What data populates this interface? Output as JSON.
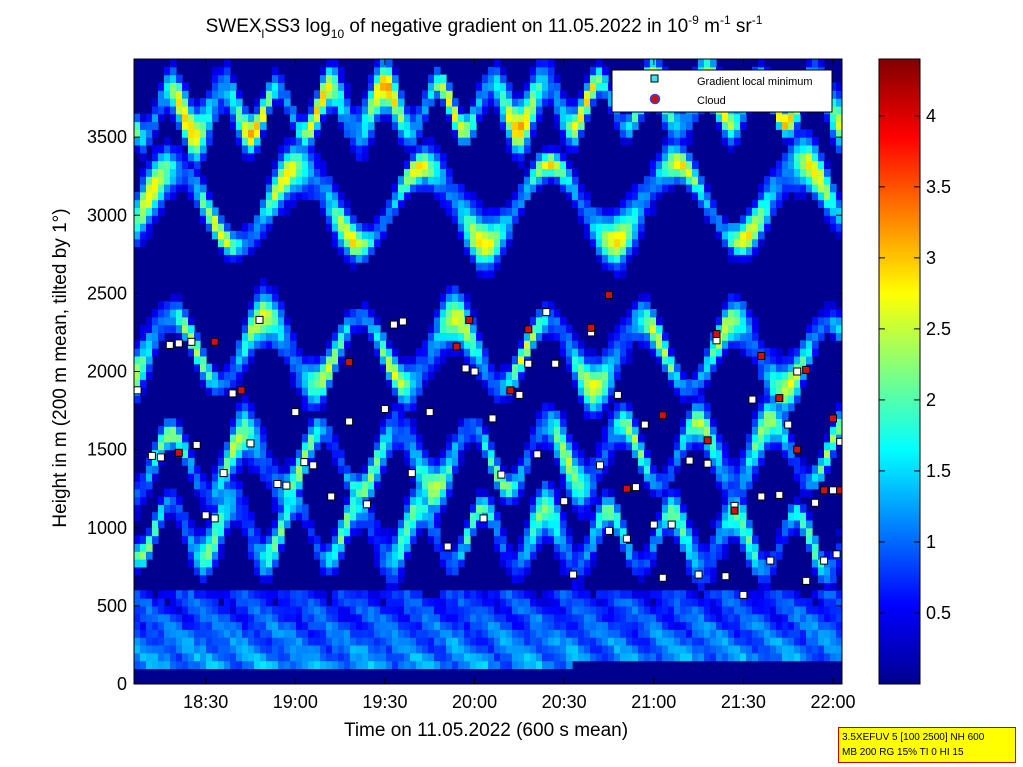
{
  "chart_data": {
    "type": "heatmap",
    "title": {
      "prefix": "SWEX",
      "sub1": "l",
      "mid": "SS3 log",
      "sub2": "10",
      "rest": " of negative gradient on 11.05.2022 in 10",
      "sup1": "-9",
      "mid2": " m",
      "sup2": "-1",
      "mid3": " sr",
      "sup3": "-1"
    },
    "xlabel": "Time on 11.05.2022 (600 s mean)",
    "ylabel": "Height in m (200 m mean, tilted by 1°)",
    "x_ticks": [
      {
        "label": "18:30",
        "hour": 18.5
      },
      {
        "label": "19:00",
        "hour": 19.0
      },
      {
        "label": "19:30",
        "hour": 19.5
      },
      {
        "label": "20:00",
        "hour": 20.0
      },
      {
        "label": "20:30",
        "hour": 20.5
      },
      {
        "label": "21:00",
        "hour": 21.0
      },
      {
        "label": "21:30",
        "hour": 21.5
      },
      {
        "label": "22:00",
        "hour": 22.0
      }
    ],
    "xlim_hours": [
      18.1,
      22.05
    ],
    "y_ticks": [
      0,
      500,
      1000,
      1500,
      2000,
      2500,
      3000,
      3500
    ],
    "ylim": [
      0,
      4000
    ],
    "colorbar": {
      "ticks": [
        "0.5",
        "1",
        "1.5",
        "2",
        "2.5",
        "3",
        "3.5",
        "4"
      ],
      "tick_values": [
        0.5,
        1,
        1.5,
        2,
        2.5,
        3,
        3.5,
        4
      ],
      "range": [
        0,
        4.4
      ],
      "colormap": "jet"
    },
    "legend": {
      "placement": "top-right",
      "entries": [
        {
          "label": "Gradient local minimum",
          "color": "#40e0f0",
          "marker": "square"
        },
        {
          "label": "Cloud",
          "color": "#d01010",
          "marker": "circle"
        }
      ]
    },
    "layers": [
      {
        "hour0": 18.1,
        "hour1": 22.05,
        "h0": 3050,
        "h1": 3100,
        "level": 2.6,
        "amp": 250
      },
      {
        "hour0": 18.1,
        "hour1": 22.05,
        "h0": 2150,
        "h1": 2100,
        "level": 2.4,
        "amp": 220
      },
      {
        "hour0": 18.1,
        "hour1": 22.05,
        "h0": 1400,
        "h1": 1500,
        "level": 2.2,
        "amp": 200
      },
      {
        "hour0": 18.1,
        "hour1": 22.05,
        "h0": 1000,
        "h1": 900,
        "level": 2.0,
        "amp": 180
      },
      {
        "hour0": 18.1,
        "hour1": 22.05,
        "h0": 3650,
        "h1": 3750,
        "level": 2.8,
        "amp": 150
      }
    ],
    "local_minima": [
      {
        "hour": 18.12,
        "h": 1880
      },
      {
        "hour": 18.2,
        "h": 1460
      },
      {
        "hour": 18.25,
        "h": 1450
      },
      {
        "hour": 18.3,
        "h": 2170
      },
      {
        "hour": 18.35,
        "h": 2180
      },
      {
        "hour": 18.42,
        "h": 2190
      },
      {
        "hour": 18.45,
        "h": 1530
      },
      {
        "hour": 18.5,
        "h": 1080
      },
      {
        "hour": 18.55,
        "h": 1060
      },
      {
        "hour": 18.6,
        "h": 1350
      },
      {
        "hour": 18.65,
        "h": 1860
      },
      {
        "hour": 18.75,
        "h": 1540
      },
      {
        "hour": 18.8,
        "h": 2330
      },
      {
        "hour": 18.9,
        "h": 1280
      },
      {
        "hour": 18.95,
        "h": 1270
      },
      {
        "hour": 19.0,
        "h": 1740
      },
      {
        "hour": 19.05,
        "h": 1420
      },
      {
        "hour": 19.1,
        "h": 1400
      },
      {
        "hour": 19.2,
        "h": 1200
      },
      {
        "hour": 19.3,
        "h": 1680
      },
      {
        "hour": 19.4,
        "h": 1150
      },
      {
        "hour": 19.5,
        "h": 1760
      },
      {
        "hour": 19.55,
        "h": 2300
      },
      {
        "hour": 19.6,
        "h": 2320
      },
      {
        "hour": 19.65,
        "h": 1350
      },
      {
        "hour": 19.75,
        "h": 1740
      },
      {
        "hour": 19.85,
        "h": 880
      },
      {
        "hour": 19.95,
        "h": 2020
      },
      {
        "hour": 20.0,
        "h": 2000
      },
      {
        "hour": 20.05,
        "h": 1060
      },
      {
        "hour": 20.1,
        "h": 1700
      },
      {
        "hour": 20.15,
        "h": 1340
      },
      {
        "hour": 20.25,
        "h": 1850
      },
      {
        "hour": 20.3,
        "h": 2050
      },
      {
        "hour": 20.35,
        "h": 1470
      },
      {
        "hour": 20.4,
        "h": 2380
      },
      {
        "hour": 20.45,
        "h": 2050
      },
      {
        "hour": 20.5,
        "h": 1170
      },
      {
        "hour": 20.55,
        "h": 700
      },
      {
        "hour": 20.65,
        "h": 2250
      },
      {
        "hour": 20.7,
        "h": 1400
      },
      {
        "hour": 20.75,
        "h": 980
      },
      {
        "hour": 20.8,
        "h": 1850
      },
      {
        "hour": 20.85,
        "h": 930
      },
      {
        "hour": 20.9,
        "h": 1260
      },
      {
        "hour": 20.95,
        "h": 1660
      },
      {
        "hour": 21.0,
        "h": 1020
      },
      {
        "hour": 21.05,
        "h": 680
      },
      {
        "hour": 21.1,
        "h": 1020
      },
      {
        "hour": 21.2,
        "h": 1430
      },
      {
        "hour": 21.25,
        "h": 700
      },
      {
        "hour": 21.3,
        "h": 1410
      },
      {
        "hour": 21.35,
        "h": 2200
      },
      {
        "hour": 21.4,
        "h": 690
      },
      {
        "hour": 21.45,
        "h": 1140
      },
      {
        "hour": 21.5,
        "h": 570
      },
      {
        "hour": 21.55,
        "h": 1820
      },
      {
        "hour": 21.6,
        "h": 1200
      },
      {
        "hour": 21.65,
        "h": 790
      },
      {
        "hour": 21.7,
        "h": 1210
      },
      {
        "hour": 21.75,
        "h": 1660
      },
      {
        "hour": 21.8,
        "h": 2000
      },
      {
        "hour": 21.85,
        "h": 660
      },
      {
        "hour": 21.9,
        "h": 1160
      },
      {
        "hour": 21.95,
        "h": 790
      },
      {
        "hour": 22.0,
        "h": 1240
      },
      {
        "hour": 22.02,
        "h": 830
      },
      {
        "hour": 22.04,
        "h": 1550
      }
    ],
    "clouds": [
      {
        "hour": 18.35,
        "h": 1480
      },
      {
        "hour": 18.55,
        "h": 2190
      },
      {
        "hour": 18.7,
        "h": 1880
      },
      {
        "hour": 19.3,
        "h": 2060
      },
      {
        "hour": 19.9,
        "h": 2160
      },
      {
        "hour": 19.97,
        "h": 2330
      },
      {
        "hour": 20.2,
        "h": 1880
      },
      {
        "hour": 20.3,
        "h": 2270
      },
      {
        "hour": 20.65,
        "h": 2280
      },
      {
        "hour": 20.75,
        "h": 2490
      },
      {
        "hour": 20.85,
        "h": 1250
      },
      {
        "hour": 21.05,
        "h": 1720
      },
      {
        "hour": 21.3,
        "h": 1560
      },
      {
        "hour": 21.35,
        "h": 2240
      },
      {
        "hour": 21.45,
        "h": 1110
      },
      {
        "hour": 21.6,
        "h": 2100
      },
      {
        "hour": 21.7,
        "h": 1830
      },
      {
        "hour": 21.8,
        "h": 1500
      },
      {
        "hour": 21.95,
        "h": 1240
      },
      {
        "hour": 22.0,
        "h": 1700
      },
      {
        "hour": 22.04,
        "h": 1240
      },
      {
        "hour": 21.85,
        "h": 2010
      }
    ]
  },
  "info_box": {
    "line1": "3.5XEFUV 5 [100 2500] NH 600",
    "line2": "MB 200 RG 15% TI 0 HI 15"
  }
}
